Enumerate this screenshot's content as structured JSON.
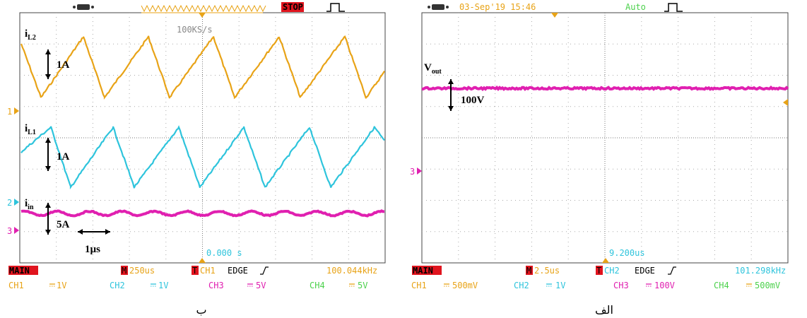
{
  "left": {
    "caption": "ب",
    "state": "STOP",
    "rate": "100KS/s",
    "trigger_time": "0.000 s",
    "annotations": {
      "il2": {
        "base": "i",
        "sub": "L2"
      },
      "il2_scale": "1A",
      "il1": {
        "base": "i",
        "sub": "L1"
      },
      "il1_scale": "1A",
      "iin": {
        "base": "i",
        "sub": "in"
      },
      "iin_scale": "5A",
      "time_scale": "1µs"
    },
    "markers": [
      "1",
      "2",
      "3"
    ],
    "status": {
      "mode": "MAIN",
      "m": "M",
      "timebase": "250us",
      "t": "T",
      "trig_source": "CH1",
      "trig_type": "EDGE",
      "frequency": "100.044kHz"
    },
    "channels": [
      {
        "name": "CH1",
        "scale": "1V"
      },
      {
        "name": "CH2",
        "scale": "1V"
      },
      {
        "name": "CH3",
        "scale": "5V"
      },
      {
        "name": "CH4",
        "scale": "5V"
      }
    ]
  },
  "right": {
    "caption": "الف",
    "date": "03-Sep'19 15:46",
    "mode": "Auto",
    "trigger_time": "9.200us",
    "annotations": {
      "vout": {
        "base": "V",
        "sub": "out"
      },
      "vout_scale": "100V"
    },
    "markers": [
      "3"
    ],
    "status": {
      "mode": "MAIN",
      "m": "M",
      "timebase": "2.5us",
      "t": "T",
      "trig_source": "CH2",
      "trig_type": "EDGE",
      "frequency": "101.298kHz"
    },
    "channels": [
      {
        "name": "CH1",
        "scale": "500mV"
      },
      {
        "name": "CH2",
        "scale": "1V"
      },
      {
        "name": "CH3",
        "scale": "100V"
      },
      {
        "name": "CH4",
        "scale": "500mV"
      }
    ]
  }
}
